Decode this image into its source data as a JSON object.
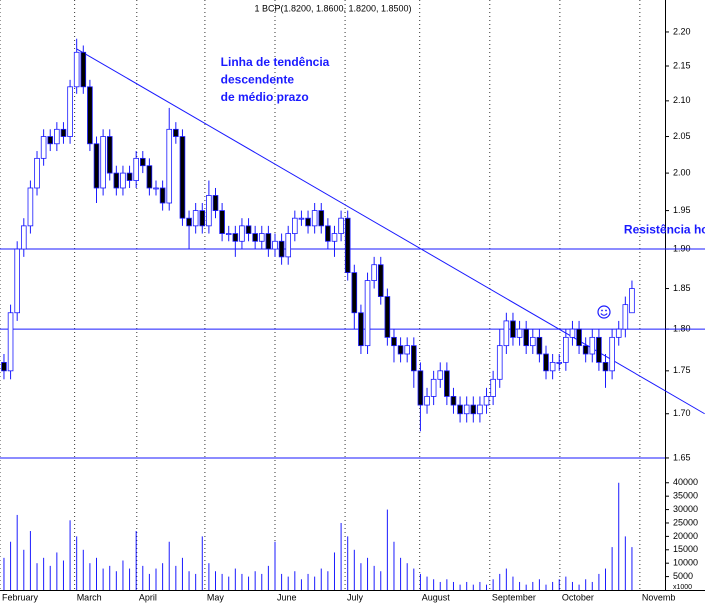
{
  "chart_data": {
    "type": "candlestick",
    "title": "1 BCP(1.8200, 1.8600, 1.8200, 1.8500)",
    "log_scale": true,
    "up_color": "#1a1aff",
    "down_color": "#000000",
    "volume_color": "#1a1aff",
    "line_color": "#1a1aff",
    "grid": true,
    "xlim": [
      -0.6,
      100
    ],
    "xticks": [
      {
        "value": -0.6,
        "label": "February"
      },
      {
        "value": 10.7,
        "label": "March"
      },
      {
        "value": 20.1,
        "label": "April"
      },
      {
        "value": 30.4,
        "label": "May"
      },
      {
        "value": 41.0,
        "label": "June"
      },
      {
        "value": 51.6,
        "label": "July"
      },
      {
        "value": 62.9,
        "label": "August"
      },
      {
        "value": 73.5,
        "label": "September"
      },
      {
        "value": 84.1,
        "label": "October"
      },
      {
        "value": 96.2,
        "label": "Novemb"
      }
    ],
    "ylim": [
      1.6455,
      2.248
    ],
    "yticks": [
      {
        "value": 2.2,
        "label": "2.20"
      },
      {
        "value": 2.15,
        "label": "2.15"
      },
      {
        "value": 2.1,
        "label": "2.10"
      },
      {
        "value": 2.05,
        "label": "2.05"
      },
      {
        "value": 2.0,
        "label": "2.00"
      },
      {
        "value": 1.95,
        "label": "1.95"
      },
      {
        "value": 1.9,
        "label": "1.90"
      },
      {
        "value": 1.85,
        "label": "1.85"
      },
      {
        "value": 1.8,
        "label": "1.80"
      },
      {
        "value": 1.75,
        "label": "1.75"
      },
      {
        "value": 1.7,
        "label": "1.70"
      },
      {
        "value": 1.65,
        "label": "1.65"
      }
    ],
    "volume_ylim": [
      0,
      47000
    ],
    "volume_yticks": [
      40000,
      35000,
      30000,
      25000,
      20000,
      15000,
      10000,
      5000
    ],
    "volume_unit": "x1000",
    "hlines": [
      1.9,
      1.8
    ],
    "trendline": [
      [
        11,
        2.175
      ],
      [
        106,
        1.7
      ]
    ],
    "annotations": [
      {
        "text": "Linha de tendência",
        "x": 11,
        "y": 2.15
      },
      {
        "text": "descendente",
        "x": 11,
        "y": 2.125
      },
      {
        "text": "de médio prazo",
        "x": 11,
        "y": 2.1
      },
      {
        "text": "Resistência horizontal",
        "x": 72,
        "y": 1.92
      }
    ],
    "open": [
      1.76,
      1.75,
      1.82,
      1.9,
      1.93,
      1.98,
      2.02,
      2.05,
      2.04,
      2.06,
      2.05,
      2.12,
      2.17,
      2.12,
      2.04,
      1.98,
      2.05,
      2.0,
      1.98,
      2.0,
      1.99,
      2.02,
      2.01,
      1.98,
      1.98,
      1.96,
      2.06,
      2.05,
      1.94,
      1.93,
      1.95,
      1.93,
      1.97,
      1.95,
      1.92,
      1.92,
      1.91,
      1.93,
      1.92,
      1.91,
      1.92,
      1.9,
      1.91,
      1.89,
      1.92,
      1.94,
      1.94,
      1.93,
      1.95,
      1.93,
      1.91,
      1.92,
      1.94,
      1.87,
      1.82,
      1.78,
      1.86,
      1.88,
      1.84,
      1.79,
      1.78,
      1.77,
      1.78,
      1.75,
      1.71,
      1.72,
      1.74,
      1.75,
      1.72,
      1.71,
      1.7,
      1.71,
      1.7,
      1.71,
      1.72,
      1.74,
      1.78,
      1.81,
      1.79,
      1.8,
      1.78,
      1.79,
      1.77,
      1.75,
      1.76,
      1.76,
      1.79,
      1.8,
      1.78,
      1.77,
      1.79,
      1.76,
      1.75,
      1.79,
      1.8,
      1.82
    ],
    "high": [
      1.77,
      1.83,
      1.91,
      1.94,
      1.99,
      2.03,
      2.06,
      2.06,
      2.07,
      2.07,
      2.13,
      2.19,
      2.18,
      2.13,
      2.05,
      2.06,
      2.06,
      2.01,
      2.01,
      2.01,
      2.03,
      2.03,
      2.02,
      1.99,
      1.99,
      2.09,
      2.07,
      2.06,
      1.95,
      1.96,
      1.96,
      1.99,
      1.98,
      1.96,
      1.93,
      1.93,
      1.94,
      1.94,
      1.93,
      1.93,
      1.93,
      1.92,
      1.92,
      1.93,
      1.95,
      1.95,
      1.95,
      1.96,
      1.96,
      1.94,
      1.93,
      1.95,
      1.95,
      1.88,
      1.83,
      1.87,
      1.89,
      1.89,
      1.85,
      1.8,
      1.79,
      1.79,
      1.79,
      1.76,
      1.73,
      1.75,
      1.76,
      1.76,
      1.73,
      1.72,
      1.72,
      1.72,
      1.72,
      1.73,
      1.75,
      1.8,
      1.82,
      1.82,
      1.81,
      1.81,
      1.8,
      1.8,
      1.78,
      1.77,
      1.77,
      1.8,
      1.81,
      1.81,
      1.79,
      1.8,
      1.8,
      1.77,
      1.8,
      1.81,
      1.84,
      1.86
    ],
    "low": [
      1.74,
      1.74,
      1.81,
      1.89,
      1.92,
      1.97,
      2.01,
      2.03,
      2.03,
      2.04,
      2.04,
      2.11,
      2.11,
      2.03,
      1.96,
      1.97,
      1.99,
      1.97,
      1.97,
      1.98,
      1.98,
      2.0,
      1.97,
      1.97,
      1.95,
      1.95,
      2.04,
      1.93,
      1.9,
      1.92,
      1.92,
      1.92,
      1.94,
      1.91,
      1.91,
      1.89,
      1.9,
      1.91,
      1.9,
      1.9,
      1.89,
      1.89,
      1.88,
      1.88,
      1.91,
      1.93,
      1.92,
      1.92,
      1.92,
      1.9,
      1.89,
      1.91,
      1.86,
      1.8,
      1.77,
      1.77,
      1.85,
      1.83,
      1.78,
      1.76,
      1.76,
      1.76,
      1.73,
      1.68,
      1.7,
      1.71,
      1.73,
      1.71,
      1.7,
      1.69,
      1.69,
      1.69,
      1.69,
      1.7,
      1.71,
      1.73,
      1.77,
      1.78,
      1.78,
      1.77,
      1.77,
      1.76,
      1.74,
      1.74,
      1.75,
      1.75,
      1.78,
      1.77,
      1.76,
      1.76,
      1.75,
      1.73,
      1.74,
      1.78,
      1.79,
      1.82
    ],
    "close": [
      1.75,
      1.82,
      1.9,
      1.93,
      1.98,
      2.02,
      2.05,
      2.04,
      2.06,
      2.05,
      2.12,
      2.17,
      2.12,
      2.04,
      1.98,
      2.05,
      2.0,
      1.98,
      2.0,
      1.99,
      2.02,
      2.01,
      1.98,
      1.98,
      1.96,
      2.06,
      2.05,
      1.94,
      1.93,
      1.95,
      1.93,
      1.97,
      1.95,
      1.92,
      1.92,
      1.91,
      1.93,
      1.92,
      1.91,
      1.92,
      1.9,
      1.91,
      1.89,
      1.92,
      1.94,
      1.94,
      1.93,
      1.95,
      1.93,
      1.91,
      1.92,
      1.94,
      1.87,
      1.82,
      1.78,
      1.86,
      1.88,
      1.84,
      1.79,
      1.78,
      1.77,
      1.78,
      1.75,
      1.71,
      1.72,
      1.74,
      1.75,
      1.72,
      1.71,
      1.7,
      1.71,
      1.7,
      1.71,
      1.72,
      1.74,
      1.78,
      1.81,
      1.79,
      1.8,
      1.78,
      1.79,
      1.77,
      1.75,
      1.76,
      1.76,
      1.79,
      1.8,
      1.78,
      1.77,
      1.79,
      1.76,
      1.75,
      1.79,
      1.8,
      1.83,
      1.85
    ],
    "volume": [
      12000,
      18000,
      28000,
      15000,
      22000,
      10000,
      12000,
      9000,
      14000,
      11000,
      26000,
      20000,
      15000,
      10000,
      12000,
      8000,
      9000,
      7000,
      11000,
      8000,
      22000,
      9000,
      6000,
      8000,
      10000,
      18000,
      9000,
      12000,
      7000,
      6000,
      20000,
      10000,
      7000,
      6000,
      5000,
      8000,
      6000,
      5000,
      7000,
      6000,
      9000,
      18000,
      6000,
      5000,
      7000,
      4000,
      6000,
      5000,
      8000,
      7000,
      14000,
      25000,
      20000,
      15000,
      10000,
      12000,
      9000,
      7000,
      30000,
      18000,
      12000,
      10000,
      8000,
      6000,
      5000,
      4000,
      3000,
      4000,
      3000,
      2000,
      3000,
      2000,
      3000,
      2000,
      4000,
      6000,
      8000,
      5000,
      3000,
      2000,
      3000,
      4000,
      2000,
      3000,
      4000,
      5000,
      3000,
      2000,
      4000,
      3000,
      6000,
      8000,
      16000,
      40000,
      20000,
      16000
    ]
  }
}
